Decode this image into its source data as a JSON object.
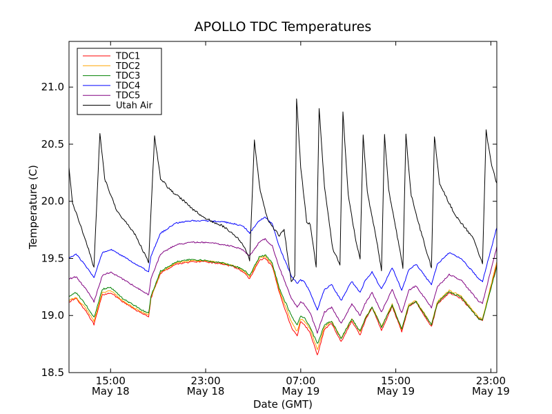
{
  "chart_data": {
    "type": "line",
    "title": "APOLLO TDC Temperatures",
    "xlabel": "Date (GMT)",
    "ylabel": "Temperature (C)",
    "xlim": [
      11.5,
      47.5
    ],
    "ylim": [
      18.5,
      21.4
    ],
    "grid": false,
    "legend_position": "top-left",
    "x_units": "hours since May 18 00:00 GMT",
    "x_ticks": [
      {
        "x": 15,
        "line1": "15:00",
        "line2": "May 18"
      },
      {
        "x": 23,
        "line1": "23:00",
        "line2": "May 18"
      },
      {
        "x": 31,
        "line1": "07:00",
        "line2": "May 19"
      },
      {
        "x": 39,
        "line1": "15:00",
        "line2": "May 19"
      },
      {
        "x": 47,
        "line1": "23:00",
        "line2": "May 19"
      }
    ],
    "y_ticks": [
      {
        "y": 18.5,
        "label": "18.5"
      },
      {
        "y": 19.0,
        "label": "19.0"
      },
      {
        "y": 19.5,
        "label": "19.5"
      },
      {
        "y": 20.0,
        "label": "20.0"
      },
      {
        "y": 20.5,
        "label": "20.5"
      },
      {
        "y": 21.0,
        "label": "21.0"
      }
    ],
    "series": [
      {
        "name": "TDC1",
        "color": "#ff0000",
        "noise": 0.006,
        "points": [
          [
            11.5,
            19.12
          ],
          [
            12.1,
            19.15
          ],
          [
            13.0,
            19.03
          ],
          [
            13.6,
            18.92
          ],
          [
            14.3,
            19.18
          ],
          [
            15.0,
            19.2
          ],
          [
            16.0,
            19.12
          ],
          [
            17.6,
            19.02
          ],
          [
            18.2,
            18.99
          ],
          [
            18.4,
            19.15
          ],
          [
            19.2,
            19.37
          ],
          [
            20.5,
            19.45
          ],
          [
            21.8,
            19.47
          ],
          [
            23.0,
            19.47
          ],
          [
            24.5,
            19.45
          ],
          [
            25.5,
            19.42
          ],
          [
            26.2,
            19.38
          ],
          [
            26.7,
            19.32
          ],
          [
            27.5,
            19.48
          ],
          [
            28.0,
            19.5
          ],
          [
            28.6,
            19.43
          ],
          [
            29.2,
            19.2
          ],
          [
            30.2,
            18.9
          ],
          [
            30.7,
            18.82
          ],
          [
            31.0,
            18.95
          ],
          [
            31.3,
            18.92
          ],
          [
            31.8,
            18.85
          ],
          [
            32.4,
            18.65
          ],
          [
            33.0,
            18.88
          ],
          [
            33.6,
            18.93
          ],
          [
            34.4,
            18.77
          ],
          [
            35.3,
            18.95
          ],
          [
            36.0,
            18.83
          ],
          [
            36.4,
            18.95
          ],
          [
            37.0,
            19.07
          ],
          [
            37.8,
            18.87
          ],
          [
            38.7,
            19.08
          ],
          [
            39.5,
            18.86
          ],
          [
            40.1,
            19.08
          ],
          [
            40.7,
            19.12
          ],
          [
            42.0,
            18.9
          ],
          [
            42.5,
            19.1
          ],
          [
            43.5,
            19.2
          ],
          [
            44.5,
            19.15
          ],
          [
            46.0,
            18.97
          ],
          [
            46.3,
            18.96
          ],
          [
            47.5,
            19.45
          ]
        ]
      },
      {
        "name": "TDC2",
        "color": "#ffa500",
        "noise": 0.006,
        "points": [
          [
            11.5,
            19.13
          ],
          [
            12.1,
            19.16
          ],
          [
            13.0,
            19.05
          ],
          [
            13.6,
            18.95
          ],
          [
            14.3,
            19.2
          ],
          [
            15.0,
            19.22
          ],
          [
            16.0,
            19.13
          ],
          [
            17.6,
            19.03
          ],
          [
            18.2,
            19.01
          ],
          [
            18.4,
            19.16
          ],
          [
            19.2,
            19.38
          ],
          [
            20.5,
            19.46
          ],
          [
            21.8,
            19.48
          ],
          [
            23.0,
            19.48
          ],
          [
            24.5,
            19.46
          ],
          [
            25.5,
            19.43
          ],
          [
            26.2,
            19.39
          ],
          [
            26.7,
            19.34
          ],
          [
            27.5,
            19.5
          ],
          [
            28.0,
            19.52
          ],
          [
            28.6,
            19.45
          ],
          [
            29.2,
            19.22
          ],
          [
            30.2,
            18.95
          ],
          [
            30.7,
            18.86
          ],
          [
            31.0,
            18.97
          ],
          [
            31.3,
            18.95
          ],
          [
            31.8,
            18.88
          ],
          [
            32.4,
            18.7
          ],
          [
            33.0,
            18.9
          ],
          [
            33.6,
            18.95
          ],
          [
            34.4,
            18.8
          ],
          [
            35.3,
            18.97
          ],
          [
            36.0,
            18.86
          ],
          [
            36.4,
            18.97
          ],
          [
            37.0,
            19.08
          ],
          [
            37.8,
            18.9
          ],
          [
            38.7,
            19.1
          ],
          [
            39.5,
            18.88
          ],
          [
            40.1,
            19.1
          ],
          [
            40.7,
            19.13
          ],
          [
            42.0,
            18.92
          ],
          [
            42.5,
            19.12
          ],
          [
            43.5,
            19.22
          ],
          [
            44.5,
            19.17
          ],
          [
            46.0,
            18.98
          ],
          [
            46.3,
            18.97
          ],
          [
            47.5,
            19.47
          ]
        ]
      },
      {
        "name": "TDC3",
        "color": "#008000",
        "noise": 0.007,
        "points": [
          [
            11.5,
            19.17
          ],
          [
            12.1,
            19.2
          ],
          [
            13.0,
            19.08
          ],
          [
            13.6,
            18.98
          ],
          [
            14.3,
            19.23
          ],
          [
            15.0,
            19.25
          ],
          [
            16.0,
            19.15
          ],
          [
            17.6,
            19.05
          ],
          [
            18.2,
            19.02
          ],
          [
            18.4,
            19.17
          ],
          [
            19.2,
            19.39
          ],
          [
            20.5,
            19.47
          ],
          [
            21.8,
            19.49
          ],
          [
            23.0,
            19.48
          ],
          [
            24.5,
            19.46
          ],
          [
            25.5,
            19.43
          ],
          [
            26.2,
            19.4
          ],
          [
            26.7,
            19.35
          ],
          [
            27.5,
            19.51
          ],
          [
            28.0,
            19.53
          ],
          [
            28.6,
            19.46
          ],
          [
            29.2,
            19.24
          ],
          [
            30.2,
            19.0
          ],
          [
            30.7,
            18.92
          ],
          [
            31.0,
            19.0
          ],
          [
            31.3,
            18.98
          ],
          [
            31.8,
            18.9
          ],
          [
            32.4,
            18.75
          ],
          [
            33.0,
            18.92
          ],
          [
            33.6,
            18.95
          ],
          [
            34.4,
            18.8
          ],
          [
            35.3,
            18.97
          ],
          [
            36.0,
            18.86
          ],
          [
            36.4,
            18.97
          ],
          [
            37.0,
            19.07
          ],
          [
            37.8,
            18.9
          ],
          [
            38.7,
            19.09
          ],
          [
            39.5,
            18.88
          ],
          [
            40.1,
            19.09
          ],
          [
            40.7,
            19.12
          ],
          [
            42.0,
            18.92
          ],
          [
            42.5,
            19.11
          ],
          [
            43.5,
            19.21
          ],
          [
            44.5,
            19.16
          ],
          [
            46.0,
            18.97
          ],
          [
            46.3,
            18.96
          ],
          [
            47.5,
            19.43
          ]
        ]
      },
      {
        "name": "TDC4",
        "color": "#0000ff",
        "noise": 0.006,
        "points": [
          [
            11.5,
            19.5
          ],
          [
            12.1,
            19.54
          ],
          [
            13.0,
            19.42
          ],
          [
            13.6,
            19.33
          ],
          [
            14.3,
            19.55
          ],
          [
            15.0,
            19.58
          ],
          [
            16.0,
            19.52
          ],
          [
            17.6,
            19.42
          ],
          [
            18.2,
            19.38
          ],
          [
            18.4,
            19.52
          ],
          [
            19.2,
            19.72
          ],
          [
            20.5,
            19.81
          ],
          [
            21.8,
            19.83
          ],
          [
            23.0,
            19.83
          ],
          [
            24.5,
            19.82
          ],
          [
            25.5,
            19.8
          ],
          [
            26.2,
            19.78
          ],
          [
            26.7,
            19.72
          ],
          [
            27.5,
            19.83
          ],
          [
            28.0,
            19.86
          ],
          [
            28.6,
            19.8
          ],
          [
            29.2,
            19.6
          ],
          [
            30.2,
            19.35
          ],
          [
            30.7,
            19.28
          ],
          [
            31.0,
            19.31
          ],
          [
            31.3,
            19.3
          ],
          [
            31.8,
            19.2
          ],
          [
            32.4,
            19.05
          ],
          [
            33.0,
            19.23
          ],
          [
            33.6,
            19.27
          ],
          [
            34.4,
            19.13
          ],
          [
            35.3,
            19.3
          ],
          [
            36.0,
            19.2
          ],
          [
            36.4,
            19.3
          ],
          [
            37.0,
            19.38
          ],
          [
            37.8,
            19.23
          ],
          [
            38.7,
            19.42
          ],
          [
            39.5,
            19.22
          ],
          [
            40.1,
            19.4
          ],
          [
            40.7,
            19.45
          ],
          [
            42.0,
            19.27
          ],
          [
            42.5,
            19.45
          ],
          [
            43.5,
            19.55
          ],
          [
            44.5,
            19.5
          ],
          [
            46.0,
            19.32
          ],
          [
            46.3,
            19.3
          ],
          [
            47.5,
            19.77
          ]
        ]
      },
      {
        "name": "TDC5",
        "color": "#800080",
        "noise": 0.006,
        "points": [
          [
            11.5,
            19.32
          ],
          [
            12.1,
            19.34
          ],
          [
            13.0,
            19.22
          ],
          [
            13.6,
            19.12
          ],
          [
            14.3,
            19.35
          ],
          [
            15.0,
            19.38
          ],
          [
            16.0,
            19.32
          ],
          [
            17.6,
            19.22
          ],
          [
            18.2,
            19.18
          ],
          [
            18.4,
            19.32
          ],
          [
            19.2,
            19.54
          ],
          [
            20.5,
            19.62
          ],
          [
            21.8,
            19.64
          ],
          [
            23.0,
            19.64
          ],
          [
            24.5,
            19.62
          ],
          [
            25.5,
            19.6
          ],
          [
            26.2,
            19.57
          ],
          [
            26.7,
            19.52
          ],
          [
            27.5,
            19.64
          ],
          [
            28.0,
            19.67
          ],
          [
            28.6,
            19.61
          ],
          [
            29.2,
            19.42
          ],
          [
            30.2,
            19.15
          ],
          [
            30.7,
            19.07
          ],
          [
            31.0,
            19.12
          ],
          [
            31.3,
            19.1
          ],
          [
            31.8,
            19.02
          ],
          [
            32.4,
            18.85
          ],
          [
            33.0,
            19.03
          ],
          [
            33.6,
            19.07
          ],
          [
            34.4,
            18.93
          ],
          [
            35.3,
            19.1
          ],
          [
            36.0,
            19.0
          ],
          [
            36.4,
            19.1
          ],
          [
            37.0,
            19.2
          ],
          [
            37.8,
            19.03
          ],
          [
            38.7,
            19.23
          ],
          [
            39.5,
            19.02
          ],
          [
            40.1,
            19.22
          ],
          [
            40.7,
            19.26
          ],
          [
            42.0,
            19.07
          ],
          [
            42.5,
            19.25
          ],
          [
            43.5,
            19.36
          ],
          [
            44.5,
            19.31
          ],
          [
            46.0,
            19.12
          ],
          [
            46.3,
            19.11
          ],
          [
            47.5,
            19.6
          ]
        ]
      },
      {
        "name": "Utah Air",
        "color": "#000000",
        "noise": 0.01,
        "points": [
          [
            11.5,
            20.3
          ],
          [
            11.8,
            19.98
          ],
          [
            12.3,
            19.84
          ],
          [
            13.0,
            19.63
          ],
          [
            13.6,
            19.42
          ],
          [
            14.1,
            20.6
          ],
          [
            14.5,
            20.2
          ],
          [
            15.5,
            19.92
          ],
          [
            17.0,
            19.72
          ],
          [
            18.2,
            19.47
          ],
          [
            18.7,
            20.57
          ],
          [
            19.2,
            20.2
          ],
          [
            20.0,
            20.1
          ],
          [
            21.0,
            20.02
          ],
          [
            22.0,
            19.92
          ],
          [
            23.0,
            19.85
          ],
          [
            24.5,
            19.78
          ],
          [
            25.5,
            19.7
          ],
          [
            26.3,
            19.6
          ],
          [
            26.7,
            19.48
          ],
          [
            27.1,
            20.53
          ],
          [
            27.6,
            20.08
          ],
          [
            28.2,
            19.85
          ],
          [
            28.8,
            19.75
          ],
          [
            29.2,
            19.7
          ],
          [
            29.6,
            19.75
          ],
          [
            30.2,
            19.3
          ],
          [
            30.5,
            19.35
          ],
          [
            30.65,
            20.9
          ],
          [
            31.0,
            20.3
          ],
          [
            31.5,
            19.82
          ],
          [
            31.8,
            19.8
          ],
          [
            32.3,
            19.42
          ],
          [
            32.55,
            20.82
          ],
          [
            33.0,
            20.12
          ],
          [
            33.7,
            19.58
          ],
          [
            34.3,
            19.45
          ],
          [
            34.55,
            20.78
          ],
          [
            35.0,
            20.05
          ],
          [
            35.7,
            19.62
          ],
          [
            36.0,
            19.5
          ],
          [
            36.25,
            20.58
          ],
          [
            36.6,
            20.08
          ],
          [
            37.4,
            19.65
          ],
          [
            37.8,
            19.4
          ],
          [
            38.05,
            20.58
          ],
          [
            38.4,
            20.1
          ],
          [
            39.2,
            19.65
          ],
          [
            39.6,
            19.42
          ],
          [
            39.85,
            20.58
          ],
          [
            40.3,
            20.05
          ],
          [
            41.2,
            19.7
          ],
          [
            42.0,
            19.42
          ],
          [
            42.25,
            20.57
          ],
          [
            42.7,
            20.15
          ],
          [
            44.0,
            19.88
          ],
          [
            45.5,
            19.68
          ],
          [
            46.3,
            19.45
          ],
          [
            46.6,
            20.62
          ],
          [
            47.0,
            20.35
          ],
          [
            47.5,
            20.15
          ]
        ]
      }
    ]
  }
}
